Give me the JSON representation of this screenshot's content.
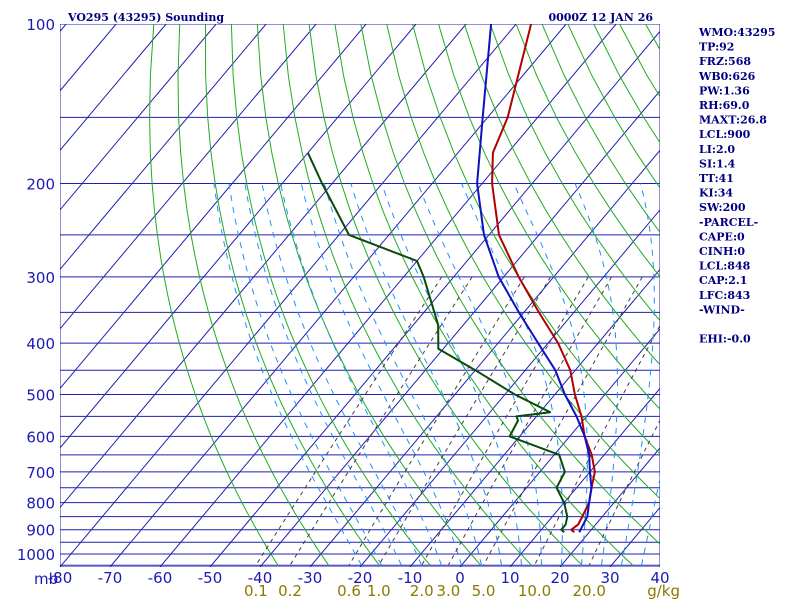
{
  "chart_data": {
    "type": "line",
    "title": "VO295 (43295) Sounding",
    "valid_time": "0000Z 12 JAN 26",
    "unit_label": "mb",
    "mixing_unit": "g/kg",
    "pressure_ticks": [
      "100",
      "200",
      "300",
      "400",
      "500",
      "600",
      "700",
      "800",
      "900",
      "1000"
    ],
    "temperature_ticks": [
      "-80",
      "-70",
      "-60",
      "-50",
      "-40",
      "-30",
      "-20",
      "-10",
      "0",
      "10",
      "20",
      "30",
      "40"
    ],
    "mixing_ratio_labels": [
      "0.1",
      "0.2",
      "0.6",
      "1.0",
      "2.0",
      "3.0",
      "5.0",
      "10.0",
      "20.0"
    ],
    "colors": {
      "isobar": "#2020b0",
      "isotherm": "#2020b0",
      "dry_adiabat": "#22aa22",
      "moist_adiabat": "#1e90ff",
      "mixing_line": "#404040",
      "temperature": "#b00000",
      "dewpoint": "#0a4a0a",
      "parcel": "#1010c0"
    },
    "series": [
      {
        "key": "temperature",
        "points": [
          [
            100,
            -77
          ],
          [
            150,
            -66
          ],
          [
            175,
            -63
          ],
          [
            200,
            -58
          ],
          [
            250,
            -48
          ],
          [
            300,
            -37
          ],
          [
            350,
            -27
          ],
          [
            400,
            -18
          ],
          [
            450,
            -11
          ],
          [
            500,
            -6
          ],
          [
            550,
            -1
          ],
          [
            600,
            3
          ],
          [
            650,
            7.5
          ],
          [
            700,
            11
          ],
          [
            750,
            13
          ],
          [
            800,
            15
          ],
          [
            850,
            16
          ],
          [
            880,
            16.5
          ],
          [
            900,
            16
          ],
          [
            910,
            17
          ]
        ]
      },
      {
        "key": "dewpoint",
        "points": [
          [
            175,
            -100
          ],
          [
            200,
            -92
          ],
          [
            250,
            -78
          ],
          [
            280,
            -60
          ],
          [
            300,
            -56
          ],
          [
            370,
            -45
          ],
          [
            410,
            -41
          ],
          [
            450,
            -30
          ],
          [
            500,
            -18
          ],
          [
            540,
            -8
          ],
          [
            550,
            -14
          ],
          [
            560,
            -13
          ],
          [
            600,
            -12
          ],
          [
            650,
            1
          ],
          [
            700,
            5
          ],
          [
            750,
            6
          ],
          [
            800,
            10
          ],
          [
            850,
            13
          ],
          [
            880,
            14
          ],
          [
            900,
            14
          ],
          [
            910,
            15
          ]
        ]
      },
      {
        "key": "parcel",
        "points": [
          [
            100,
            -85
          ],
          [
            150,
            -71
          ],
          [
            200,
            -61
          ],
          [
            250,
            -51
          ],
          [
            300,
            -41
          ],
          [
            350,
            -31
          ],
          [
            400,
            -22
          ],
          [
            450,
            -14
          ],
          [
            500,
            -8
          ],
          [
            550,
            -2
          ],
          [
            600,
            3
          ],
          [
            650,
            7
          ],
          [
            700,
            10
          ],
          [
            750,
            13
          ],
          [
            800,
            15
          ],
          [
            850,
            17
          ],
          [
            910,
            18
          ]
        ]
      }
    ]
  },
  "indices": [
    "WMO:43295",
    "TP:92",
    "FRZ:568",
    "WB0:626",
    "PW:1.36",
    "RH:69.0",
    "MAXT:26.8",
    "LCL:900",
    "LI:2.0",
    "SI:1.4",
    "TT:41",
    "KI:34",
    "SW:200",
    "-PARCEL-",
    "CAPE:0",
    "CINH:0",
    "LCL:848",
    "CAP:2.1",
    "LFC:843",
    "-WIND-",
    "",
    "EHI:-0.0"
  ]
}
